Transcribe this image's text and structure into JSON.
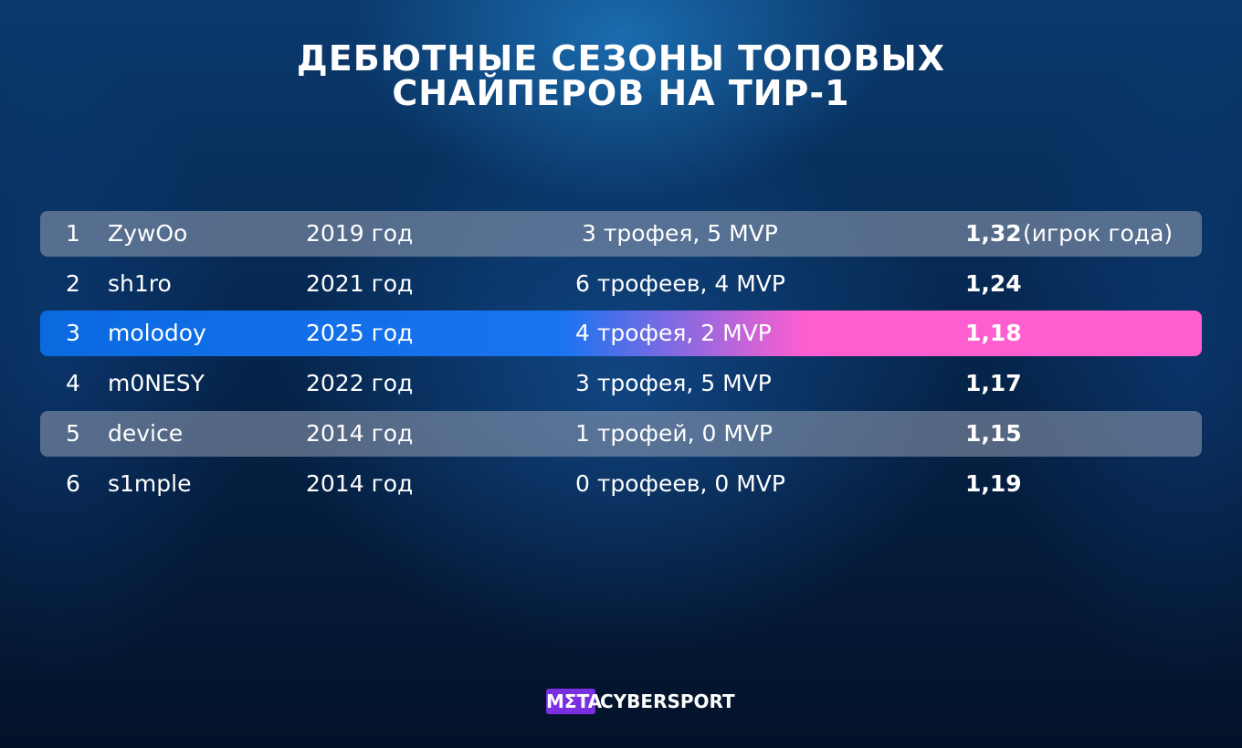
{
  "header": {
    "title_lines": [
      "ДЕБЮТНЫЕ СЕЗОНЫ ТОПОВЫХ",
      "СНАЙПЕРОВ НА ТИР-1"
    ]
  },
  "table": {
    "rows": [
      {
        "rank": "1",
        "player": "ZywOo",
        "season": "2019 год",
        "achievements": "3 трофея, 5 MVP",
        "rating": "1,32",
        "note": "(игрок года)"
      },
      {
        "rank": "2",
        "player": "sh1ro",
        "season": "2021 год",
        "achievements": "6 трофеев, 4 MVP",
        "rating": "1,24"
      },
      {
        "rank": "3",
        "player": "molodoy",
        "season": "2025 год",
        "achievements": "4 трофея, 2 MVP",
        "rating": "1,18"
      },
      {
        "rank": "4",
        "player": "m0NESY",
        "season": "2022 год",
        "achievements": "3 трофея, 5 MVP",
        "rating": "1,17"
      },
      {
        "rank": "5",
        "player": "device",
        "season": "2014 год",
        "achievements": "1 трофей, 0 MVP",
        "rating": "1,15"
      },
      {
        "rank": "6",
        "player": "s1mple",
        "season": "2014 год",
        "achievements": "0 трофеев, 0 MVP",
        "rating": "1,19"
      }
    ]
  },
  "footer": {
    "brand_mark": "MΣTA",
    "brand_name": "CYBERSPORT"
  }
}
